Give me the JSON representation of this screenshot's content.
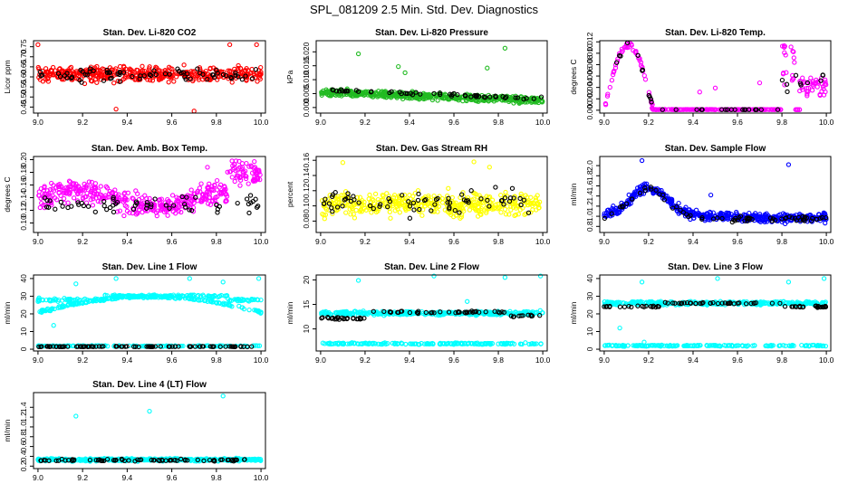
{
  "page_title": "SPL_081209  2.5 Min. Std. Dev. Diagnostics",
  "colors": {
    "black": "#000000",
    "red": "#ff0000",
    "green": "#22bb22",
    "magenta": "#ff00ff",
    "yellow": "#ffff00",
    "blue": "#0000ff",
    "cyan": "#00ffff"
  },
  "chart_data": [
    {
      "id": "co2",
      "type": "scatter",
      "title": "Stan. Dev. Li-820 CO2",
      "ylabel": "Licor ppm",
      "xlim": [
        8.98,
        10.02
      ],
      "ylim": [
        0.42,
        0.78
      ],
      "xticks": [
        "9.0",
        "9.2",
        "9.4",
        "9.6",
        "9.8",
        "10.0"
      ],
      "yticks": [
        "0.45",
        "0.50",
        "0.55",
        "0.60",
        "0.65",
        "0.70",
        "0.75"
      ],
      "primary_color": "red",
      "pattern": "noise",
      "base": 0.615,
      "spread": 0.055,
      "n": 430,
      "nblack": 70,
      "black_base": 0.61,
      "black_spread": 0.05,
      "outliers": [
        [
          9.0,
          0.76
        ],
        [
          9.35,
          0.44
        ],
        [
          9.7,
          0.43
        ],
        [
          9.98,
          0.76
        ],
        [
          9.86,
          0.76
        ]
      ]
    },
    {
      "id": "pres",
      "type": "scatter",
      "title": "Stan. Dev. Li-820 Pressure",
      "ylabel": "kPa",
      "xlim": [
        8.98,
        10.02
      ],
      "ylim": [
        -0.002,
        0.024
      ],
      "xticks": [
        "9.0",
        "9.2",
        "9.4",
        "9.6",
        "9.8",
        "10.0"
      ],
      "yticks": [
        "0.000",
        "0.005",
        "0.010",
        "0.015",
        "0.020"
      ],
      "primary_color": "green",
      "pattern": "decline",
      "start": 0.0055,
      "end": 0.0025,
      "spread": 0.0018,
      "n": 520,
      "nblack": 55,
      "black_offset": 0.0008,
      "outliers": [
        [
          9.17,
          0.0193
        ],
        [
          9.83,
          0.0213
        ],
        [
          9.35,
          0.0147
        ],
        [
          9.75,
          0.0142
        ],
        [
          9.38,
          0.0125
        ]
      ]
    },
    {
      "id": "temp820",
      "type": "scatter",
      "title": "Stan. Dev. Li-820 Temp.",
      "ylabel": "degrees C",
      "xlim": [
        8.98,
        10.02
      ],
      "ylim": [
        -0.0005,
        0.0122
      ],
      "xticks": [
        "9.0",
        "9.2",
        "9.4",
        "9.6",
        "9.8",
        "10.0"
      ],
      "yticks": [
        "0.000",
        "0.002",
        "0.004",
        "0.006",
        "0.008",
        "0.010",
        "0.012"
      ],
      "primary_color": "magenta",
      "pattern": "humps",
      "n": 300,
      "nblack": 40,
      "outliers": [
        [
          9.5,
          0.0039
        ],
        [
          9.43,
          0.0032
        ],
        [
          9.7,
          0.0048
        ],
        [
          9.22,
          0.0002
        ]
      ]
    },
    {
      "id": "ambbox",
      "type": "scatter",
      "title": "Stan. Dev. Amb. Box Temp.",
      "ylabel": "degrees C",
      "xlim": [
        8.98,
        10.02
      ],
      "ylim": [
        0.085,
        0.205
      ],
      "xticks": [
        "9.0",
        "9.2",
        "9.4",
        "9.6",
        "9.8",
        "10.0"
      ],
      "yticks": [
        "0.10",
        "0.12",
        "0.14",
        "0.16",
        "0.18",
        "0.20"
      ],
      "primary_color": "magenta",
      "pattern": "wave",
      "base": 0.138,
      "spread": 0.025,
      "n": 450,
      "nblack": 60,
      "black_base": 0.128,
      "black_spread": 0.018,
      "outliers": [
        [
          9.87,
          0.198
        ],
        [
          9.97,
          0.197
        ],
        [
          9.76,
          0.188
        ]
      ]
    },
    {
      "id": "rh",
      "type": "scatter",
      "title": "Stan. Dev. Gas Stream RH",
      "ylabel": "percent",
      "xlim": [
        8.98,
        10.02
      ],
      "ylim": [
        0.065,
        0.165
      ],
      "xticks": [
        "9.0",
        "9.2",
        "9.4",
        "9.6",
        "9.8",
        "10.0"
      ],
      "yticks": [
        "0.08",
        "0.10",
        "0.12",
        "0.14",
        "0.16"
      ],
      "primary_color": "yellow",
      "pattern": "noise",
      "base": 0.102,
      "spread": 0.022,
      "n": 430,
      "nblack": 70,
      "black_base": 0.105,
      "black_spread": 0.025,
      "outliers": [
        [
          9.69,
          0.158
        ],
        [
          9.1,
          0.157
        ],
        [
          9.76,
          0.151
        ]
      ]
    },
    {
      "id": "sflow",
      "type": "scatter",
      "title": "Stan. Dev. Sample Flow",
      "ylabel": "ml/min",
      "xlim": [
        8.98,
        10.02
      ],
      "ylim": [
        0.68,
        2.18
      ],
      "xticks": [
        "9.0",
        "9.2",
        "9.4",
        "9.6",
        "9.8",
        "10.0"
      ],
      "yticks": [
        "0.8",
        "1.0",
        "1.2",
        "1.4",
        "1.6",
        "1.8",
        "2.0"
      ],
      "primary_color": "blue",
      "pattern": "bump",
      "n": 500,
      "nblack": 70,
      "outliers": [
        [
          9.17,
          2.1
        ],
        [
          9.83,
          2.02
        ],
        [
          9.48,
          1.42
        ]
      ]
    },
    {
      "id": "line1",
      "type": "scatter",
      "title": "Stan. Dev. Line 1 Flow",
      "ylabel": "ml/min",
      "xlim": [
        8.98,
        10.02
      ],
      "ylim": [
        -1,
        42
      ],
      "xticks": [
        "9.0",
        "9.2",
        "9.4",
        "9.6",
        "9.8",
        "10.0"
      ],
      "yticks": [
        "0",
        "10",
        "20",
        "30",
        "40"
      ],
      "primary_color": "cyan",
      "pattern": "bands1",
      "n": 520,
      "nblack": 90,
      "black_level": 1.5,
      "outliers": [
        [
          9.07,
          13.5
        ],
        [
          9.17,
          37
        ],
        [
          9.35,
          40
        ],
        [
          9.68,
          40
        ],
        [
          9.99,
          40
        ],
        [
          9.83,
          38
        ]
      ]
    },
    {
      "id": "line2",
      "type": "scatter",
      "title": "Stan. Dev. Line 2 Flow",
      "ylabel": "ml/min",
      "xlim": [
        8.98,
        10.02
      ],
      "ylim": [
        5.5,
        21
      ],
      "xticks": [
        "9.0",
        "9.2",
        "9.4",
        "9.6",
        "9.8",
        "10.0"
      ],
      "yticks": [
        "10",
        "15",
        "20"
      ],
      "primary_color": "cyan",
      "pattern": "bands2",
      "n": 520,
      "nblack": 80,
      "outliers": [
        [
          9.17,
          19.9
        ],
        [
          9.51,
          20.8
        ],
        [
          9.99,
          20.8
        ],
        [
          9.83,
          20.5
        ],
        [
          9.66,
          15.6
        ]
      ]
    },
    {
      "id": "line3",
      "type": "scatter",
      "title": "Stan. Dev. Line 3 Flow",
      "ylabel": "ml/min",
      "xlim": [
        8.98,
        10.02
      ],
      "ylim": [
        -1,
        42
      ],
      "xticks": [
        "9.0",
        "9.2",
        "9.4",
        "9.6",
        "9.8",
        "10.0"
      ],
      "yticks": [
        "0",
        "10",
        "20",
        "30",
        "40"
      ],
      "primary_color": "cyan",
      "pattern": "bands3",
      "n": 520,
      "nblack": 80,
      "outliers": [
        [
          9.07,
          12
        ],
        [
          9.17,
          38
        ],
        [
          9.18,
          4
        ],
        [
          9.51,
          40
        ],
        [
          9.99,
          40
        ],
        [
          9.83,
          38
        ]
      ]
    },
    {
      "id": "line4",
      "type": "scatter",
      "title": "Stan. Dev. Line 4 (LT) Flow",
      "ylabel": "ml/min",
      "xlim": [
        8.98,
        10.02
      ],
      "ylim": [
        0.15,
        1.7
      ],
      "xticks": [
        "9.0",
        "9.2",
        "9.4",
        "9.6",
        "9.8",
        "10.0"
      ],
      "yticks": [
        "0.2",
        "0.4",
        "0.6",
        "0.8",
        "1.0",
        "1.2",
        "1.4"
      ],
      "primary_color": "cyan",
      "pattern": "flat",
      "base": 0.33,
      "spread": 0.04,
      "n": 450,
      "nblack": 70,
      "black_base": 0.32,
      "black_spread": 0.03,
      "outliers": [
        [
          9.17,
          1.22
        ],
        [
          9.5,
          1.32
        ],
        [
          9.83,
          1.63
        ]
      ]
    }
  ]
}
